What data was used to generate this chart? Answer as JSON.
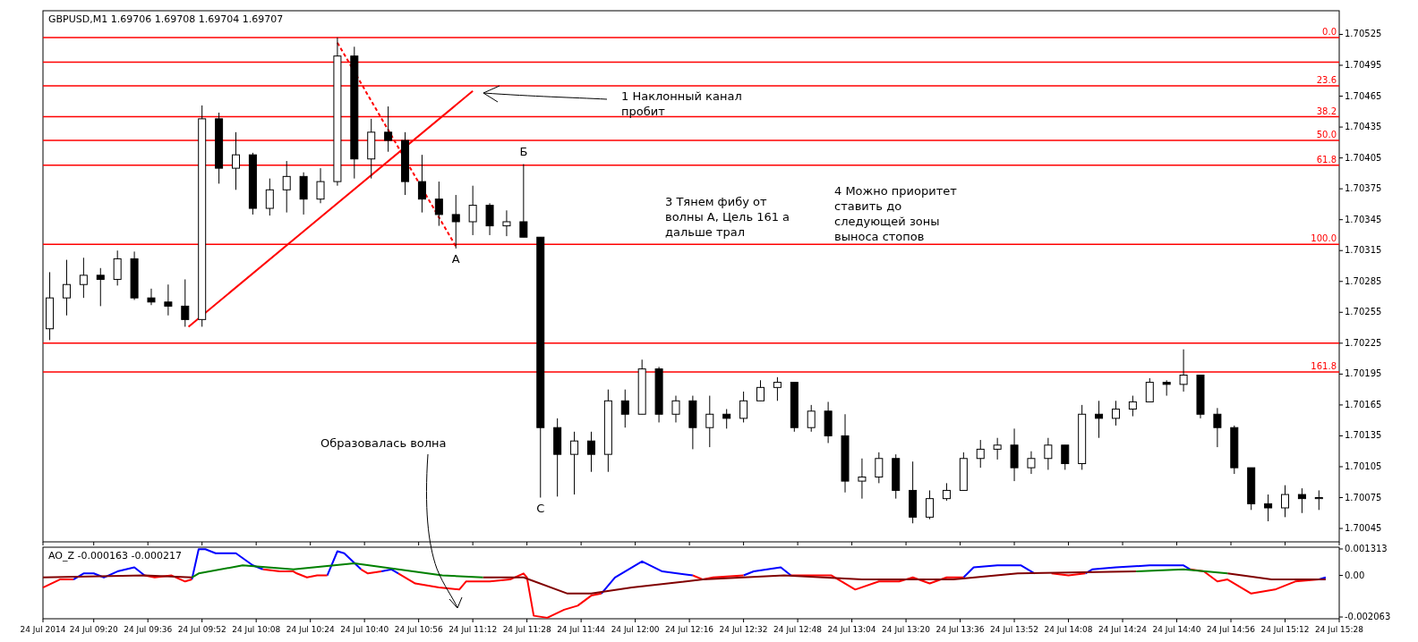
{
  "chart_data": [
    {
      "type": "candlestick",
      "title": "GBPUSD,M1 1.69706 1.69708 1.69704 1.69707",
      "tick_labels": "y",
      "x": [
        "2014-07-24T09:07",
        "2014-07-24T09:12",
        "2014-07-24T09:17",
        "2014-07-24T09:22",
        "2014-07-24T09:27",
        "2014-07-24T09:32",
        "2014-07-24T09:37",
        "2014-07-24T09:42",
        "2014-07-24T09:47",
        "2014-07-24T09:52",
        "2014-07-24T09:57",
        "2014-07-24T10:02",
        "2014-07-24T10:07",
        "2014-07-24T10:12",
        "2014-07-24T10:17",
        "2014-07-24T10:22",
        "2014-07-24T10:27",
        "2014-07-24T10:32",
        "2014-07-24T10:37",
        "2014-07-24T10:42",
        "2014-07-24T10:47",
        "2014-07-24T10:52",
        "2014-07-24T10:57",
        "2014-07-24T11:02",
        "2014-07-24T11:07",
        "2014-07-24T11:12",
        "2014-07-24T11:17",
        "2014-07-24T11:22",
        "2014-07-24T11:27",
        "2014-07-24T11:32",
        "2014-07-24T11:37",
        "2014-07-24T11:42",
        "2014-07-24T11:47",
        "2014-07-24T11:52",
        "2014-07-24T11:57",
        "2014-07-24T12:02",
        "2014-07-24T12:07",
        "2014-07-24T12:12",
        "2014-07-24T12:17",
        "2014-07-24T12:22",
        "2014-07-24T12:27",
        "2014-07-24T12:32",
        "2014-07-24T12:37",
        "2014-07-24T12:42",
        "2014-07-24T12:47",
        "2014-07-24T12:52",
        "2014-07-24T12:57",
        "2014-07-24T13:02",
        "2014-07-24T13:07",
        "2014-07-24T13:12",
        "2014-07-24T13:17",
        "2014-07-24T13:22",
        "2014-07-24T13:27",
        "2014-07-24T13:32",
        "2014-07-24T13:37",
        "2014-07-24T13:42",
        "2014-07-24T13:47",
        "2014-07-24T13:52",
        "2014-07-24T13:57",
        "2014-07-24T14:02",
        "2014-07-24T14:07",
        "2014-07-24T14:12",
        "2014-07-24T14:17",
        "2014-07-24T14:22",
        "2014-07-24T14:27",
        "2014-07-24T14:32",
        "2014-07-24T14:37",
        "2014-07-24T14:42",
        "2014-07-24T14:47",
        "2014-07-24T14:52",
        "2014-07-24T14:57",
        "2014-07-24T15:02",
        "2014-07-24T15:07",
        "2014-07-24T15:12",
        "2014-07-24T15:17",
        "2014-07-24T15:22"
      ],
      "ohlc": [
        [
          1.70239,
          1.70294,
          1.70228,
          1.70269
        ],
        [
          1.70269,
          1.70306,
          1.70252,
          1.70282
        ],
        [
          1.70282,
          1.70308,
          1.70269,
          1.70291
        ],
        [
          1.70291,
          1.70298,
          1.70261,
          1.70287
        ],
        [
          1.70287,
          1.70315,
          1.70281,
          1.70307
        ],
        [
          1.70307,
          1.70314,
          1.70267,
          1.70269
        ],
        [
          1.70269,
          1.70278,
          1.70262,
          1.70265
        ],
        [
          1.70265,
          1.70282,
          1.70252,
          1.70261
        ],
        [
          1.70261,
          1.70287,
          1.70241,
          1.70248
        ],
        [
          1.70248,
          1.70456,
          1.70241,
          1.70443
        ],
        [
          1.70443,
          1.70449,
          1.7038,
          1.70395
        ],
        [
          1.70395,
          1.7043,
          1.70374,
          1.70408
        ],
        [
          1.70408,
          1.7041,
          1.7035,
          1.70356
        ],
        [
          1.70356,
          1.70385,
          1.70349,
          1.70374
        ],
        [
          1.70374,
          1.70402,
          1.70352,
          1.70387
        ],
        [
          1.70387,
          1.70391,
          1.7035,
          1.70365
        ],
        [
          1.70365,
          1.70395,
          1.70361,
          1.70382
        ],
        [
          1.70382,
          1.70522,
          1.70378,
          1.70504
        ],
        [
          1.70504,
          1.70513,
          1.70385,
          1.70404
        ],
        [
          1.70404,
          1.70443,
          1.70385,
          1.7043
        ],
        [
          1.7043,
          1.70455,
          1.70411,
          1.70422
        ],
        [
          1.70422,
          1.7043,
          1.70369,
          1.70382
        ],
        [
          1.70382,
          1.70408,
          1.70352,
          1.70365
        ],
        [
          1.70365,
          1.70382,
          1.70339,
          1.7035
        ],
        [
          1.7035,
          1.70369,
          1.70317,
          1.70343
        ],
        [
          1.70343,
          1.70378,
          1.7033,
          1.70359
        ],
        [
          1.70359,
          1.70361,
          1.7033,
          1.70339
        ],
        [
          1.70339,
          1.70354,
          1.70329,
          1.70343
        ],
        [
          1.70343,
          1.70399,
          1.70328,
          1.70328
        ],
        [
          1.70328,
          1.70328,
          1.70075,
          1.70143
        ],
        [
          1.70143,
          1.70152,
          1.70076,
          1.70117
        ],
        [
          1.70117,
          1.70139,
          1.70078,
          1.7013
        ],
        [
          1.7013,
          1.70139,
          1.701,
          1.70117
        ],
        [
          1.70117,
          1.7018,
          1.701,
          1.70169
        ],
        [
          1.70169,
          1.7018,
          1.70143,
          1.70156
        ],
        [
          1.70156,
          1.70209,
          1.70156,
          1.702
        ],
        [
          1.702,
          1.70202,
          1.70148,
          1.70156
        ],
        [
          1.70156,
          1.70174,
          1.70148,
          1.70169
        ],
        [
          1.70169,
          1.70174,
          1.70122,
          1.70143
        ],
        [
          1.70143,
          1.70174,
          1.70124,
          1.70156
        ],
        [
          1.70156,
          1.70161,
          1.70142,
          1.70152
        ],
        [
          1.70152,
          1.70178,
          1.70148,
          1.70169
        ],
        [
          1.70169,
          1.70189,
          1.70169,
          1.70182
        ],
        [
          1.70182,
          1.70192,
          1.70169,
          1.70187
        ],
        [
          1.70187,
          1.70187,
          1.70139,
          1.70143
        ],
        [
          1.70143,
          1.70165,
          1.70139,
          1.70159
        ],
        [
          1.70159,
          1.70168,
          1.70128,
          1.70135
        ],
        [
          1.70135,
          1.70156,
          1.7008,
          1.70091
        ],
        [
          1.70091,
          1.70113,
          1.70074,
          1.70095
        ],
        [
          1.70095,
          1.70119,
          1.70089,
          1.70113
        ],
        [
          1.70113,
          1.70117,
          1.70074,
          1.70082
        ],
        [
          1.70082,
          1.7011,
          1.7005,
          1.70056
        ],
        [
          1.70056,
          1.70082,
          1.70054,
          1.70074
        ],
        [
          1.70074,
          1.70089,
          1.70072,
          1.70082
        ],
        [
          1.70082,
          1.70119,
          1.70082,
          1.70113
        ],
        [
          1.70113,
          1.70131,
          1.70104,
          1.70122
        ],
        [
          1.70122,
          1.70133,
          1.70112,
          1.70126
        ],
        [
          1.70126,
          1.70142,
          1.70091,
          1.70104
        ],
        [
          1.70104,
          1.7012,
          1.70098,
          1.70113
        ],
        [
          1.70113,
          1.70133,
          1.70102,
          1.70126
        ],
        [
          1.70126,
          1.70126,
          1.70102,
          1.70108
        ],
        [
          1.70108,
          1.70165,
          1.70102,
          1.70156
        ],
        [
          1.70156,
          1.70169,
          1.70133,
          1.70152
        ],
        [
          1.70152,
          1.70169,
          1.70145,
          1.70161
        ],
        [
          1.70161,
          1.70174,
          1.70154,
          1.70168
        ],
        [
          1.70168,
          1.70191,
          1.70168,
          1.70187
        ],
        [
          1.70187,
          1.70189,
          1.70174,
          1.70185
        ],
        [
          1.70185,
          1.70219,
          1.70178,
          1.70194
        ],
        [
          1.70194,
          1.70194,
          1.70152,
          1.70156
        ],
        [
          1.70156,
          1.70162,
          1.70124,
          1.70143
        ],
        [
          1.70143,
          1.70145,
          1.70098,
          1.70104
        ],
        [
          1.70104,
          1.70104,
          1.70063,
          1.70069
        ],
        [
          1.70069,
          1.70078,
          1.70052,
          1.70065
        ],
        [
          1.70065,
          1.70087,
          1.70056,
          1.70078
        ],
        [
          1.70078,
          1.70084,
          1.7006,
          1.70074
        ],
        [
          1.70074,
          1.70082,
          1.70063,
          1.70075
        ]
      ],
      "series": [
        {
          "type": "line",
          "color": "#ff0000",
          "x": [
            "2014-07-24T09:48",
            "2014-07-24T11:12"
          ],
          "values": [
            1.70241,
            1.7047
          ]
        },
        {
          "type": "line",
          "color": "#ff0000",
          "line_style": "dashed",
          "x": [
            "2014-07-24T10:32",
            "2014-07-24T11:07"
          ],
          "values": [
            1.70517,
            1.70319
          ]
        }
      ],
      "ref_lines": [
        {
          "axis": "y",
          "value": 1.70498,
          "color": "#ff0000"
        },
        {
          "axis": "y",
          "value": 1.70225,
          "color": "#ff0000"
        },
        {
          "axis": "y",
          "value": 1.70522,
          "color": "#ff0000"
        },
        {
          "axis": "y",
          "value": 1.70475,
          "color": "#ff0000"
        },
        {
          "axis": "y",
          "value": 1.70445,
          "color": "#ff0000"
        },
        {
          "axis": "y",
          "value": 1.70422,
          "color": "#ff0000"
        },
        {
          "axis": "y",
          "value": 1.70398,
          "color": "#ff0000"
        },
        {
          "axis": "y",
          "value": 1.70321,
          "color": "#ff0000"
        },
        {
          "axis": "y",
          "value": 1.70197,
          "color": "#ff0000"
        }
      ],
      "annotations": [
        "1 Наклонный канал пробит",
        "3 Тянем фибу от волны А, Цель 161 а дальше трал",
        "4 Можно приоритет ставить до следующей зоны выноса стопов",
        "Образовалась волна",
        {
          "text": "А",
          "x": "2014-07-24T11:07",
          "y": 1.70317
        },
        {
          "text": "Б",
          "x": "2014-07-24T11:27",
          "y": 1.70399
        },
        {
          "text": "С",
          "x": "2014-07-24T11:32",
          "y": 1.70075
        },
        {
          "text": "0.0",
          "x": "2014-07-24T15:28",
          "y": 1.70522
        },
        {
          "text": "23.6",
          "x": "2014-07-24T15:28",
          "y": 1.70475
        },
        {
          "text": "38.2",
          "x": "2014-07-24T15:28",
          "y": 1.70445
        },
        {
          "text": "50.0",
          "x": "2014-07-24T15:28",
          "y": 1.70422
        },
        {
          "text": "61.8",
          "x": "2014-07-24T15:28",
          "y": 1.70398
        },
        {
          "text": "100.0",
          "x": "2014-07-24T15:28",
          "y": 1.70321
        },
        {
          "text": "161.8",
          "x": "2014-07-24T15:28",
          "y": 1.70197
        }
      ],
      "xlim": [
        "2014-07-24T09:05",
        "2014-07-24T15:28"
      ],
      "xticks": [
        {
          "value": "2014-07-24T09:05",
          "label": null
        },
        {
          "value": "2014-07-24T09:20",
          "label": null
        },
        {
          "value": "2014-07-24T09:36",
          "label": null
        },
        {
          "value": "2014-07-24T09:52",
          "label": null
        },
        {
          "value": "2014-07-24T10:08",
          "label": null
        },
        {
          "value": "2014-07-24T10:24",
          "label": null
        },
        {
          "value": "2014-07-24T10:40",
          "label": null
        },
        {
          "value": "2014-07-24T10:56",
          "label": null
        },
        {
          "value": "2014-07-24T11:12",
          "label": null
        },
        {
          "value": "2014-07-24T11:28",
          "label": null
        },
        {
          "value": "2014-07-24T11:44",
          "label": null
        },
        {
          "value": "2014-07-24T12:00",
          "label": null
        },
        {
          "value": "2014-07-24T12:16",
          "label": null
        },
        {
          "value": "2014-07-24T12:32",
          "label": null
        },
        {
          "value": "2014-07-24T12:48",
          "label": null
        },
        {
          "value": "2014-07-24T13:04",
          "label": null
        },
        {
          "value": "2014-07-24T13:20",
          "label": null
        },
        {
          "value": "2014-07-24T13:36",
          "label": null
        },
        {
          "value": "2014-07-24T13:52",
          "label": null
        },
        {
          "value": "2014-07-24T14:08",
          "label": null
        },
        {
          "value": "2014-07-24T14:24",
          "label": null
        },
        {
          "value": "2014-07-24T14:40",
          "label": null
        },
        {
          "value": "2014-07-24T14:56",
          "label": null
        },
        {
          "value": "2014-07-24T15:12",
          "label": null
        },
        {
          "value": "2014-07-24T15:28",
          "label": null
        }
      ],
      "ylim": [
        1.70032,
        1.70548
      ],
      "yticks": [
        1.70525,
        1.70495,
        1.70465,
        1.70435,
        1.70405,
        1.70375,
        1.70345,
        1.70315,
        1.70285,
        1.70255,
        1.70225,
        1.70195,
        1.70165,
        1.70135,
        1.70105,
        1.70075,
        1.70045
      ]
    },
    {
      "type": "line",
      "title": "AO_Z -0.000163 -0.000217",
      "series": [
        {
          "color": "#0000ff",
          "x": [
            "2014-07-24T09:14",
            "2014-07-24T09:17",
            "2014-07-24T09:20",
            "2014-07-24T09:23",
            "2014-07-24T09:27",
            "2014-07-24T09:32",
            "2014-07-24T09:35",
            "2014-07-24T09:38",
            "2014-07-24T09:43",
            "2014-07-24T09:47",
            "2014-07-24T09:49",
            "2014-07-24T09:51",
            "2014-07-24T09:53",
            "2014-07-24T09:56",
            "2014-07-24T10:02",
            "2014-07-24T10:07",
            "2014-07-24T10:10",
            "2014-07-24T10:15",
            "2014-07-24T10:19",
            "2014-07-24T10:20",
            "2014-07-24T10:23",
            "2014-07-24T10:26",
            "2014-07-24T10:29",
            "2014-07-24T10:32",
            "2014-07-24T10:34",
            "2014-07-24T10:39",
            "2014-07-24T10:41",
            "2014-07-24T10:45",
            "2014-07-24T10:48",
            "2014-07-24T10:50",
            "2014-07-24T10:55",
            "2014-07-24T11:02",
            "2014-07-24T11:08",
            "2014-07-24T11:10",
            "2014-07-24T11:17",
            "2014-07-24T11:23",
            "2014-07-24T11:27",
            "2014-07-24T11:28",
            "2014-07-24T11:30",
            "2014-07-24T11:34",
            "2014-07-24T11:39",
            "2014-07-24T11:43",
            "2014-07-24T11:47",
            "2014-07-24T11:50",
            "2014-07-24T11:54",
            "2014-07-24T12:02",
            "2014-07-24T12:08",
            "2014-07-24T12:17",
            "2014-07-24T12:20",
            "2014-07-24T12:23",
            "2014-07-24T12:32",
            "2014-07-24T12:35",
            "2014-07-24T12:43",
            "2014-07-24T12:46",
            "2014-07-24T12:53",
            "2014-07-24T12:58",
            "2014-07-24T13:05",
            "2014-07-24T13:12",
            "2014-07-24T13:18",
            "2014-07-24T13:22",
            "2014-07-24T13:27",
            "2014-07-24T13:32",
            "2014-07-24T13:37",
            "2014-07-24T13:40",
            "2014-07-24T13:47",
            "2014-07-24T13:54",
            "2014-07-24T13:58",
            "2014-07-24T14:03",
            "2014-07-24T14:08",
            "2014-07-24T14:13",
            "2014-07-24T14:15",
            "2014-07-24T14:22",
            "2014-07-24T14:32",
            "2014-07-24T14:42",
            "2014-07-24T14:44",
            "2014-07-24T14:48",
            "2014-07-24T14:52",
            "2014-07-24T14:55",
            "2014-07-24T15:02",
            "2014-07-24T15:09",
            "2014-07-24T15:15",
            "2014-07-24T15:22",
            "2014-07-24T15:24"
          ],
          "values": [
            -0.0002,
            0.0001,
            0.0001,
            -0.0001,
            0.0002,
            0.0004,
            0,
            null,
            null,
            null,
            -0.0002,
            0.0013,
            0.0013,
            0.0011,
            0.0011,
            0.0005,
            0.0003,
            null,
            null,
            null,
            null,
            null,
            0,
            0.0012,
            0.0011,
            0.0003,
            null,
            0.0002,
            0.0003,
            0.0001,
            null,
            null,
            null,
            null,
            null,
            null,
            null,
            null,
            null,
            null,
            null,
            null,
            null,
            -0.0009,
            -0.0001,
            0.0007,
            0.0002,
            0,
            null,
            null,
            0,
            0.0002,
            0.0004,
            0,
            null,
            null,
            null,
            null,
            null,
            null,
            null,
            null,
            -0.0001,
            0.0004,
            0.0005,
            0.0005,
            0.0001,
            null,
            null,
            0.0001,
            0.0003,
            0.0004,
            0.0005,
            0.0005,
            0.0003,
            null,
            null,
            null,
            null,
            null,
            null,
            -0.0002,
            -0.0001
          ]
        },
        {
          "color": "#ff0000",
          "x": [
            "2014-07-24T09:05",
            "2014-07-24T09:10",
            "2014-07-24T09:14",
            "2014-07-24T09:17",
            "2014-07-24T09:20",
            "2014-07-24T09:23",
            "2014-07-24T09:27",
            "2014-07-24T09:32",
            "2014-07-24T09:35",
            "2014-07-24T09:38",
            "2014-07-24T09:43",
            "2014-07-24T09:47",
            "2014-07-24T09:49",
            "2014-07-24T09:51",
            "2014-07-24T09:53",
            "2014-07-24T09:56",
            "2014-07-24T10:02",
            "2014-07-24T10:07",
            "2014-07-24T10:10",
            "2014-07-24T10:15",
            "2014-07-24T10:19",
            "2014-07-24T10:20",
            "2014-07-24T10:23",
            "2014-07-24T10:26",
            "2014-07-24T10:29",
            "2014-07-24T10:32",
            "2014-07-24T10:34",
            "2014-07-24T10:39",
            "2014-07-24T10:41",
            "2014-07-24T10:45",
            "2014-07-24T10:48",
            "2014-07-24T10:50",
            "2014-07-24T10:55",
            "2014-07-24T11:02",
            "2014-07-24T11:08",
            "2014-07-24T11:10",
            "2014-07-24T11:17",
            "2014-07-24T11:23",
            "2014-07-24T11:27",
            "2014-07-24T11:28",
            "2014-07-24T11:30",
            "2014-07-24T11:34",
            "2014-07-24T11:39",
            "2014-07-24T11:43",
            "2014-07-24T11:47",
            "2014-07-24T11:50",
            "2014-07-24T11:54",
            "2014-07-24T12:02",
            "2014-07-24T12:08",
            "2014-07-24T12:17",
            "2014-07-24T12:20",
            "2014-07-24T12:23",
            "2014-07-24T12:32",
            "2014-07-24T12:35",
            "2014-07-24T12:43",
            "2014-07-24T12:46",
            "2014-07-24T12:53",
            "2014-07-24T12:58",
            "2014-07-24T13:05",
            "2014-07-24T13:12",
            "2014-07-24T13:18",
            "2014-07-24T13:22",
            "2014-07-24T13:27",
            "2014-07-24T13:32",
            "2014-07-24T13:37",
            "2014-07-24T13:40",
            "2014-07-24T13:47",
            "2014-07-24T13:54",
            "2014-07-24T13:58",
            "2014-07-24T14:03",
            "2014-07-24T14:08",
            "2014-07-24T14:13",
            "2014-07-24T14:15",
            "2014-07-24T14:22",
            "2014-07-24T14:32",
            "2014-07-24T14:42",
            "2014-07-24T14:44",
            "2014-07-24T14:48",
            "2014-07-24T14:52",
            "2014-07-24T14:55",
            "2014-07-24T15:02",
            "2014-07-24T15:09",
            "2014-07-24T15:15",
            "2014-07-24T15:22"
          ],
          "values": [
            -0.0006,
            -0.0002,
            -0.0002,
            null,
            null,
            null,
            null,
            null,
            0,
            -0.0001,
            0,
            -0.0003,
            -0.0002,
            null,
            null,
            null,
            null,
            null,
            0.0003,
            0.0002,
            0.0002,
            0.0001,
            -0.0001,
            0,
            0,
            null,
            null,
            0.0003,
            0.0001,
            0.0002,
            null,
            0.0001,
            -0.0004,
            -0.0006,
            -0.0007,
            -0.0003,
            -0.0003,
            -0.0002,
            0.0001,
            -0.0001,
            -0.002,
            -0.0021,
            -0.0017,
            -0.0015,
            -0.001,
            -0.0009,
            null,
            null,
            null,
            0,
            -0.0002,
            -0.0001,
            0,
            null,
            null,
            0,
            0,
            0,
            -0.0007,
            -0.0003,
            -0.0003,
            -0.0001,
            -0.0004,
            -0.0001,
            -0.0001,
            null,
            null,
            null,
            null,
            0.0001,
            0,
            0.0001,
            null,
            null,
            null,
            null,
            0.0003,
            0.0002,
            -0.0003,
            -0.0002,
            -0.0009,
            -0.0007,
            -0.0003,
            -0.0002
          ]
        },
        {
          "color": "#800000",
          "x": [
            "2014-07-24T09:05",
            "2014-07-24T09:35",
            "2014-07-24T09:49",
            "2014-07-24T09:51",
            "2014-07-24T10:04",
            "2014-07-24T10:19",
            "2014-07-24T10:37",
            "2014-07-24T10:50",
            "2014-07-24T11:03",
            "2014-07-24T11:15",
            "2014-07-24T11:27",
            "2014-07-24T11:40",
            "2014-07-24T11:47",
            "2014-07-24T11:59",
            "2014-07-24T12:20",
            "2014-07-24T12:44",
            "2014-07-24T13:07",
            "2014-07-24T13:34",
            "2014-07-24T13:53",
            "2014-07-24T14:28",
            "2014-07-24T14:42",
            "2014-07-24T14:55",
            "2014-07-24T15:08",
            "2014-07-24T15:24"
          ],
          "values": [
            -0.0001,
            0,
            -0.0001,
            null,
            null,
            null,
            null,
            null,
            null,
            -0.0001,
            -0.0001,
            -0.0009,
            -0.0009,
            -0.0006,
            -0.0002,
            0,
            -0.0002,
            -0.0002,
            0.0001,
            0.0002,
            null,
            0.0001,
            -0.0002,
            -0.0002
          ]
        },
        {
          "color": "#008000",
          "x": [
            "2014-07-24T09:49",
            "2014-07-24T09:51",
            "2014-07-24T10:04",
            "2014-07-24T10:19",
            "2014-07-24T10:37",
            "2014-07-24T10:50",
            "2014-07-24T11:03",
            "2014-07-24T11:15",
            "2014-07-24T11:27",
            "2014-07-24T11:40",
            "2014-07-24T11:47",
            "2014-07-24T11:59",
            "2014-07-24T12:20",
            "2014-07-24T12:44",
            "2014-07-24T13:07",
            "2014-07-24T13:34",
            "2014-07-24T13:53",
            "2014-07-24T14:28",
            "2014-07-24T14:42",
            "2014-07-24T14:55"
          ],
          "values": [
            -0.0001,
            0.0001,
            0.0005,
            0.0003,
            0.0006,
            0.0003,
            0,
            -0.0001,
            null,
            null,
            null,
            null,
            null,
            null,
            null,
            null,
            null,
            0.0002,
            0.0003,
            0.0001
          ]
        }
      ],
      "xlim": [
        "2014-07-24T09:05",
        "2014-07-24T15:28"
      ],
      "xticks": [
        {
          "value": "2014-07-24T09:05",
          "label": "24 Jul 2014"
        },
        {
          "value": "2014-07-24T09:20",
          "label": "24 Jul 09:20"
        },
        {
          "value": "2014-07-24T09:36",
          "label": "24 Jul 09:36"
        },
        {
          "value": "2014-07-24T09:52",
          "label": "24 Jul 09:52"
        },
        {
          "value": "2014-07-24T10:08",
          "label": "24 Jul 10:08"
        },
        {
          "value": "2014-07-24T10:24",
          "label": "24 Jul 10:24"
        },
        {
          "value": "2014-07-24T10:40",
          "label": "24 Jul 10:40"
        },
        {
          "value": "2014-07-24T10:56",
          "label": "24 Jul 10:56"
        },
        {
          "value": "2014-07-24T11:12",
          "label": "24 Jul 11:12"
        },
        {
          "value": "2014-07-24T11:28",
          "label": "24 Jul 11:28"
        },
        {
          "value": "2014-07-24T11:44",
          "label": "24 Jul 11:44"
        },
        {
          "value": "2014-07-24T12:00",
          "label": "24 Jul 12:00"
        },
        {
          "value": "2014-07-24T12:16",
          "label": "24 Jul 12:16"
        },
        {
          "value": "2014-07-24T12:32",
          "label": "24 Jul 12:32"
        },
        {
          "value": "2014-07-24T12:48",
          "label": "24 Jul 12:48"
        },
        {
          "value": "2014-07-24T13:04",
          "label": "24 Jul 13:04"
        },
        {
          "value": "2014-07-24T13:20",
          "label": "24 Jul 13:20"
        },
        {
          "value": "2014-07-24T13:36",
          "label": "24 Jul 13:36"
        },
        {
          "value": "2014-07-24T13:52",
          "label": "24 Jul 13:52"
        },
        {
          "value": "2014-07-24T14:08",
          "label": "24 Jul 14:08"
        },
        {
          "value": "2014-07-24T14:24",
          "label": "24 Jul 14:24"
        },
        {
          "value": "2014-07-24T14:40",
          "label": "24 Jul 14:40"
        },
        {
          "value": "2014-07-24T14:56",
          "label": "24 Jul 14:56"
        },
        {
          "value": "2014-07-24T15:12",
          "label": "24 Jul 15:12"
        },
        {
          "value": "2014-07-24T15:28",
          "label": "24 Jul 15:28"
        }
      ],
      "ylim": [
        -0.00215,
        0.0014
      ],
      "yticks": [
        0.001313,
        {
          "value": 0,
          "label": "0.00"
        },
        -0.002063
      ]
    }
  ]
}
